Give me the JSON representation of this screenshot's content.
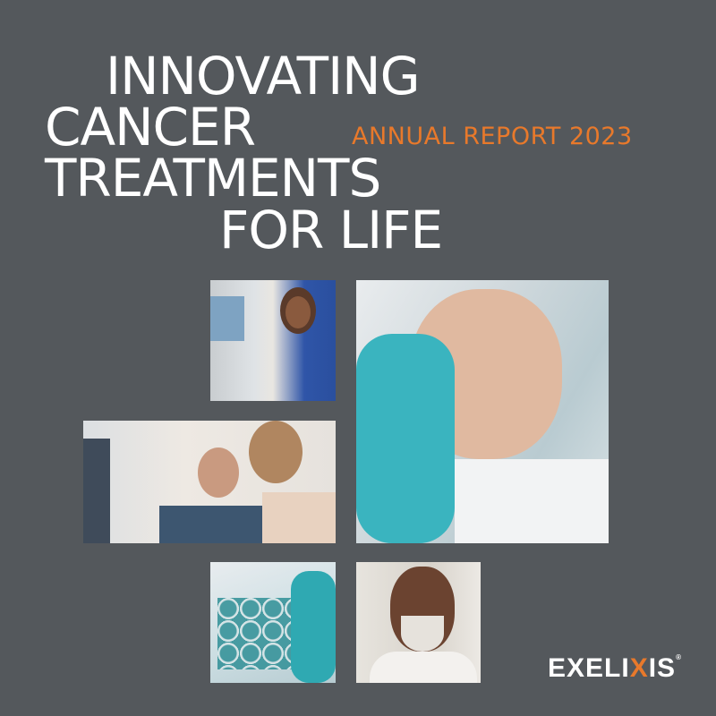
{
  "title": {
    "lines": [
      "INNOVATING",
      "CANCER",
      "TREATMENTS",
      "FOR LIFE"
    ]
  },
  "subtitle": "ANNUAL REPORT 2023",
  "logo": {
    "text": "EXELIXIS",
    "mark": "®"
  },
  "colors": {
    "background": "#54585c",
    "accent": "#e8792b",
    "text": "#ffffff"
  },
  "photos": [
    "woman-at-computer",
    "scientist-with-pipette",
    "doctor-with-patient",
    "lab-well-plate",
    "smiling-man"
  ]
}
